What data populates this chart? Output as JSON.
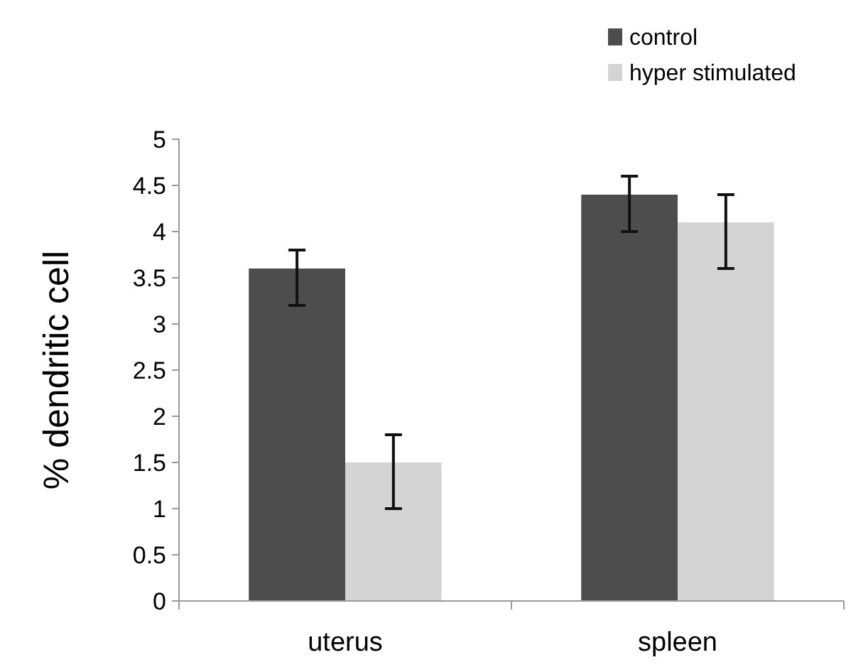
{
  "chart_data": {
    "type": "bar",
    "ylabel": "% dendritic cell",
    "categories": [
      "uterus",
      "spleen"
    ],
    "series": [
      {
        "name": "control",
        "color": "#4d4d4d",
        "values": [
          3.6,
          4.4
        ],
        "errors": [
          [
            3.2,
            3.8
          ],
          [
            4.0,
            4.6
          ]
        ]
      },
      {
        "name": "hyper stimulated",
        "color": "#d4d4d4",
        "values": [
          1.5,
          4.1
        ],
        "errors": [
          [
            1.0,
            1.8
          ],
          [
            3.6,
            4.4
          ]
        ]
      }
    ],
    "ylim": [
      0,
      5
    ],
    "yticks": [
      0,
      0.5,
      1,
      1.5,
      2,
      2.5,
      3,
      3.5,
      4,
      4.5,
      5
    ],
    "legend": "top right",
    "grid": false
  }
}
